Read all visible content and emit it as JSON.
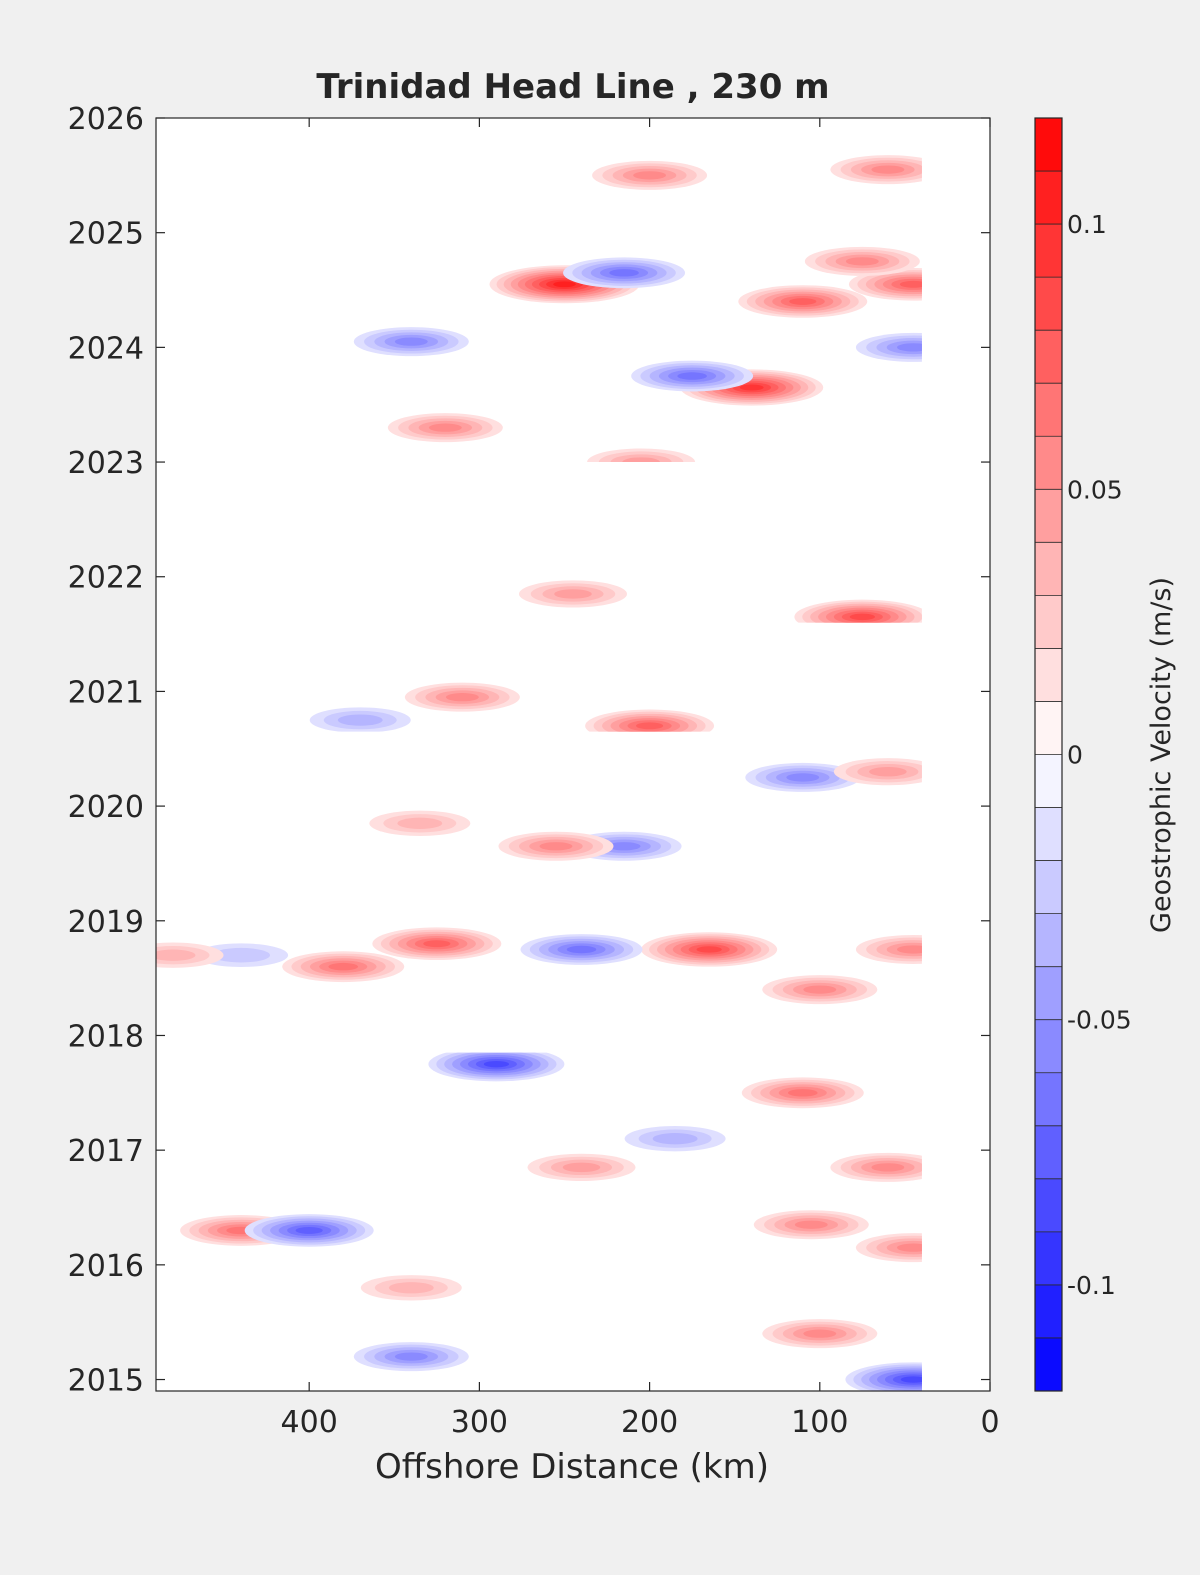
{
  "chart_data": {
    "type": "heatmap",
    "title": "Trinidad Head Line , 230 m",
    "xlabel": "Offshore Distance (km)",
    "ylabel": "",
    "xlim": [
      490,
      0
    ],
    "ylim": [
      2014.9,
      2026
    ],
    "x_reversed": true,
    "x_ticks": [
      400,
      300,
      200,
      100,
      0
    ],
    "y_ticks": [
      2015,
      2016,
      2017,
      2018,
      2019,
      2020,
      2021,
      2022,
      2023,
      2024,
      2025,
      2026
    ],
    "colorbar": {
      "label": "Geostrophic Velocity (m/s)",
      "range": [
        -0.12,
        0.12
      ],
      "levels": 24,
      "ticks": [
        0.1,
        0.05,
        0,
        -0.05,
        -0.1
      ],
      "tick_labels": [
        "0.1",
        "0.05",
        "0",
        "-0.05",
        "-0.1"
      ],
      "colors": {
        "low": "#0000ff",
        "mid": "#ffffff",
        "high": "#ff0000"
      }
    },
    "data_coverage": [
      {
        "t_start": 2014.9,
        "t_end": 2017.85,
        "x_max": 490,
        "x_min": 40
      },
      {
        "t_start": 2018.25,
        "t_end": 2020.6,
        "x_max": 490,
        "x_min": 40
      },
      {
        "t_start": 2020.65,
        "t_end": 2021.15,
        "x_max": 420,
        "x_min": 40
      },
      {
        "t_start": 2021.6,
        "t_end": 2022.05,
        "x_max": 360,
        "x_min": 40
      },
      {
        "t_start": 2023.0,
        "t_end": 2025.8,
        "x_max": 420,
        "x_min": 40
      }
    ],
    "anomalies": [
      {
        "x": 250,
        "t": 2024.55,
        "v": 0.1
      },
      {
        "x": 215,
        "t": 2024.65,
        "v": -0.06
      },
      {
        "x": 140,
        "t": 2023.65,
        "v": 0.09
      },
      {
        "x": 175,
        "t": 2023.75,
        "v": -0.06
      },
      {
        "x": 340,
        "t": 2024.05,
        "v": -0.05
      },
      {
        "x": 110,
        "t": 2024.4,
        "v": 0.07
      },
      {
        "x": 45,
        "t": 2024.55,
        "v": 0.07
      },
      {
        "x": 45,
        "t": 2024.0,
        "v": -0.05
      },
      {
        "x": 60,
        "t": 2025.55,
        "v": 0.05
      },
      {
        "x": 200,
        "t": 2025.5,
        "v": 0.05
      },
      {
        "x": 75,
        "t": 2024.75,
        "v": 0.05
      },
      {
        "x": 320,
        "t": 2023.3,
        "v": 0.05
      },
      {
        "x": 205,
        "t": 2023.0,
        "v": 0.04
      },
      {
        "x": 75,
        "t": 2021.65,
        "v": 0.08
      },
      {
        "x": 245,
        "t": 2021.85,
        "v": 0.04
      },
      {
        "x": 310,
        "t": 2020.95,
        "v": 0.05
      },
      {
        "x": 200,
        "t": 2020.7,
        "v": 0.07
      },
      {
        "x": 370,
        "t": 2020.75,
        "v": -0.03
      },
      {
        "x": 110,
        "t": 2020.25,
        "v": -0.05
      },
      {
        "x": 215,
        "t": 2019.65,
        "v": -0.05
      },
      {
        "x": 255,
        "t": 2019.65,
        "v": 0.05
      },
      {
        "x": 335,
        "t": 2019.85,
        "v": 0.03
      },
      {
        "x": 165,
        "t": 2018.75,
        "v": 0.08
      },
      {
        "x": 325,
        "t": 2018.8,
        "v": 0.07
      },
      {
        "x": 240,
        "t": 2018.75,
        "v": -0.06
      },
      {
        "x": 380,
        "t": 2018.6,
        "v": 0.06
      },
      {
        "x": 290,
        "t": 2017.75,
        "v": -0.08
      },
      {
        "x": 110,
        "t": 2017.5,
        "v": 0.06
      },
      {
        "x": 440,
        "t": 2016.3,
        "v": 0.06
      },
      {
        "x": 400,
        "t": 2016.3,
        "v": -0.07
      },
      {
        "x": 105,
        "t": 2016.35,
        "v": 0.05
      },
      {
        "x": 45,
        "t": 2016.15,
        "v": 0.05
      },
      {
        "x": 60,
        "t": 2016.85,
        "v": 0.05
      },
      {
        "x": 45,
        "t": 2015.0,
        "v": -0.08
      },
      {
        "x": 340,
        "t": 2015.2,
        "v": -0.05
      },
      {
        "x": 100,
        "t": 2015.4,
        "v": 0.05
      },
      {
        "x": 240,
        "t": 2016.85,
        "v": 0.04
      },
      {
        "x": 440,
        "t": 2018.7,
        "v": -0.02
      },
      {
        "x": 480,
        "t": 2018.7,
        "v": 0.03
      },
      {
        "x": 45,
        "t": 2018.75,
        "v": 0.05
      },
      {
        "x": 60,
        "t": 2020.3,
        "v": 0.04
      },
      {
        "x": 100,
        "t": 2018.4,
        "v": 0.05
      },
      {
        "x": 340,
        "t": 2015.8,
        "v": 0.03
      },
      {
        "x": 185,
        "t": 2017.1,
        "v": -0.03
      }
    ]
  }
}
